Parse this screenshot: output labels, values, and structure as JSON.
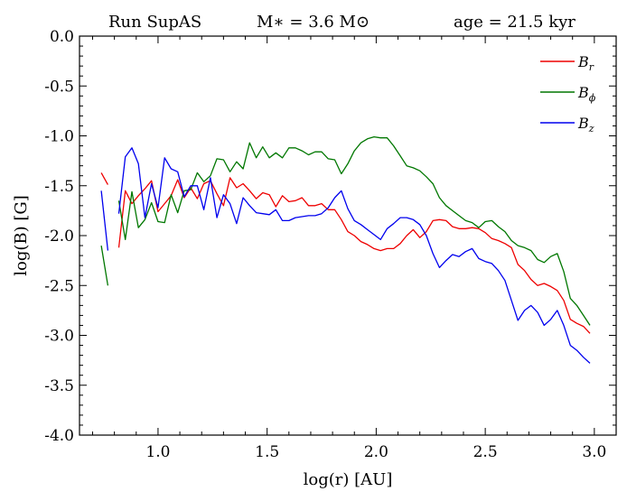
{
  "chart_data": {
    "type": "line",
    "header": {
      "run": "Run SupAS",
      "mass": "M∗ = 3.6 M⊙",
      "age": "age = 21.5 kyr"
    },
    "xlabel": "log(r) [AU]",
    "ylabel": "log(B) [G]",
    "xlim": [
      0.64,
      3.1
    ],
    "ylim": [
      -4.0,
      0.0
    ],
    "xticks": [
      1.0,
      1.5,
      2.0,
      2.5,
      3.0
    ],
    "xtick_labels": [
      "1.0",
      "1.5",
      "2.0",
      "2.5",
      "3.0"
    ],
    "yticks": [
      0.0,
      -0.5,
      -1.0,
      -1.5,
      -2.0,
      -2.5,
      -3.0,
      -3.5,
      -4.0
    ],
    "ytick_labels": [
      "0.0",
      "-0.5",
      "-1.0",
      "-1.5",
      "-2.0",
      "-2.5",
      "-3.0",
      "-3.5",
      "-4.0"
    ],
    "grid": false,
    "legend_position": "top-right",
    "series": [
      {
        "name": "B_r",
        "label_main": "B",
        "label_sub": "r",
        "color": "#ee0000",
        "segments": [
          [
            [
              0.74,
              -1.37
            ],
            [
              0.77,
              -1.49
            ]
          ],
          [
            [
              0.82,
              -2.12
            ],
            [
              0.85,
              -1.55
            ],
            [
              0.88,
              -1.68
            ],
            [
              0.91,
              -1.6
            ],
            [
              0.94,
              -1.53
            ],
            [
              0.97,
              -1.45
            ],
            [
              1.0,
              -1.76
            ],
            [
              1.03,
              -1.68
            ],
            [
              1.06,
              -1.6
            ],
            [
              1.09,
              -1.44
            ],
            [
              1.12,
              -1.62
            ],
            [
              1.15,
              -1.52
            ],
            [
              1.18,
              -1.63
            ],
            [
              1.21,
              -1.48
            ],
            [
              1.24,
              -1.45
            ],
            [
              1.27,
              -1.58
            ],
            [
              1.3,
              -1.7
            ],
            [
              1.33,
              -1.42
            ],
            [
              1.36,
              -1.52
            ],
            [
              1.39,
              -1.48
            ],
            [
              1.42,
              -1.55
            ],
            [
              1.45,
              -1.63
            ],
            [
              1.48,
              -1.57
            ],
            [
              1.51,
              -1.59
            ],
            [
              1.54,
              -1.71
            ],
            [
              1.57,
              -1.6
            ],
            [
              1.6,
              -1.66
            ],
            [
              1.63,
              -1.65
            ],
            [
              1.66,
              -1.62
            ],
            [
              1.69,
              -1.7
            ],
            [
              1.72,
              -1.7
            ],
            [
              1.75,
              -1.68
            ],
            [
              1.78,
              -1.74
            ],
            [
              1.81,
              -1.74
            ],
            [
              1.84,
              -1.84
            ],
            [
              1.87,
              -1.96
            ],
            [
              1.9,
              -2.0
            ],
            [
              1.93,
              -2.06
            ],
            [
              1.96,
              -2.09
            ],
            [
              1.99,
              -2.13
            ],
            [
              2.02,
              -2.15
            ],
            [
              2.05,
              -2.13
            ],
            [
              2.08,
              -2.13
            ],
            [
              2.11,
              -2.08
            ],
            [
              2.14,
              -2.0
            ],
            [
              2.17,
              -1.94
            ],
            [
              2.2,
              -2.02
            ],
            [
              2.23,
              -1.96
            ],
            [
              2.26,
              -1.85
            ],
            [
              2.29,
              -1.84
            ],
            [
              2.32,
              -1.85
            ],
            [
              2.35,
              -1.91
            ],
            [
              2.38,
              -1.93
            ],
            [
              2.41,
              -1.93
            ],
            [
              2.44,
              -1.92
            ],
            [
              2.47,
              -1.93
            ],
            [
              2.5,
              -1.97
            ],
            [
              2.53,
              -2.03
            ],
            [
              2.56,
              -2.05
            ],
            [
              2.59,
              -2.08
            ],
            [
              2.62,
              -2.12
            ],
            [
              2.65,
              -2.29
            ],
            [
              2.68,
              -2.35
            ],
            [
              2.71,
              -2.44
            ],
            [
              2.74,
              -2.5
            ],
            [
              2.77,
              -2.48
            ],
            [
              2.8,
              -2.51
            ],
            [
              2.83,
              -2.55
            ],
            [
              2.86,
              -2.65
            ],
            [
              2.89,
              -2.84
            ],
            [
              2.92,
              -2.88
            ],
            [
              2.95,
              -2.91
            ],
            [
              2.98,
              -2.98
            ]
          ]
        ]
      },
      {
        "name": "B_phi",
        "label_main": "B",
        "label_sub": "ϕ",
        "color": "#007700",
        "segments": [
          [
            [
              0.74,
              -2.1
            ],
            [
              0.77,
              -2.5
            ]
          ],
          [
            [
              0.82,
              -1.65
            ],
            [
              0.85,
              -2.04
            ],
            [
              0.88,
              -1.56
            ],
            [
              0.91,
              -1.92
            ],
            [
              0.94,
              -1.84
            ],
            [
              0.97,
              -1.67
            ],
            [
              1.0,
              -1.86
            ],
            [
              1.03,
              -1.87
            ],
            [
              1.06,
              -1.59
            ],
            [
              1.09,
              -1.77
            ],
            [
              1.12,
              -1.55
            ],
            [
              1.15,
              -1.54
            ],
            [
              1.18,
              -1.37
            ],
            [
              1.21,
              -1.46
            ],
            [
              1.24,
              -1.4
            ],
            [
              1.27,
              -1.23
            ],
            [
              1.3,
              -1.24
            ],
            [
              1.33,
              -1.36
            ],
            [
              1.36,
              -1.26
            ],
            [
              1.39,
              -1.33
            ],
            [
              1.42,
              -1.07
            ],
            [
              1.45,
              -1.22
            ],
            [
              1.48,
              -1.11
            ],
            [
              1.51,
              -1.22
            ],
            [
              1.54,
              -1.17
            ],
            [
              1.57,
              -1.22
            ],
            [
              1.6,
              -1.12
            ],
            [
              1.63,
              -1.12
            ],
            [
              1.66,
              -1.15
            ],
            [
              1.69,
              -1.19
            ],
            [
              1.72,
              -1.16
            ],
            [
              1.75,
              -1.16
            ],
            [
              1.78,
              -1.23
            ],
            [
              1.81,
              -1.24
            ],
            [
              1.84,
              -1.38
            ],
            [
              1.87,
              -1.28
            ],
            [
              1.9,
              -1.15
            ],
            [
              1.93,
              -1.07
            ],
            [
              1.96,
              -1.03
            ],
            [
              1.99,
              -1.01
            ],
            [
              2.02,
              -1.02
            ],
            [
              2.05,
              -1.02
            ],
            [
              2.08,
              -1.1
            ],
            [
              2.11,
              -1.2
            ],
            [
              2.14,
              -1.3
            ],
            [
              2.17,
              -1.32
            ],
            [
              2.2,
              -1.35
            ],
            [
              2.23,
              -1.41
            ],
            [
              2.26,
              -1.48
            ],
            [
              2.29,
              -1.62
            ],
            [
              2.32,
              -1.7
            ],
            [
              2.35,
              -1.75
            ],
            [
              2.38,
              -1.8
            ],
            [
              2.41,
              -1.85
            ],
            [
              2.44,
              -1.87
            ],
            [
              2.47,
              -1.92
            ],
            [
              2.5,
              -1.86
            ],
            [
              2.53,
              -1.85
            ],
            [
              2.56,
              -1.91
            ],
            [
              2.59,
              -1.96
            ],
            [
              2.62,
              -2.05
            ],
            [
              2.65,
              -2.1
            ],
            [
              2.68,
              -2.12
            ],
            [
              2.71,
              -2.15
            ],
            [
              2.74,
              -2.24
            ],
            [
              2.77,
              -2.27
            ],
            [
              2.8,
              -2.21
            ],
            [
              2.83,
              -2.18
            ],
            [
              2.86,
              -2.36
            ],
            [
              2.89,
              -2.63
            ],
            [
              2.92,
              -2.7
            ],
            [
              2.95,
              -2.8
            ],
            [
              2.98,
              -2.9
            ]
          ]
        ]
      },
      {
        "name": "B_z",
        "label_main": "B",
        "label_sub": "z",
        "color": "#0000ee",
        "segments": [
          [
            [
              0.74,
              -1.55
            ],
            [
              0.77,
              -2.15
            ]
          ],
          [
            [
              0.82,
              -1.78
            ],
            [
              0.85,
              -1.21
            ],
            [
              0.88,
              -1.12
            ],
            [
              0.91,
              -1.28
            ],
            [
              0.94,
              -1.82
            ],
            [
              0.97,
              -1.48
            ],
            [
              1.0,
              -1.72
            ],
            [
              1.03,
              -1.22
            ],
            [
              1.06,
              -1.33
            ],
            [
              1.09,
              -1.36
            ],
            [
              1.12,
              -1.61
            ],
            [
              1.15,
              -1.5
            ],
            [
              1.18,
              -1.5
            ],
            [
              1.21,
              -1.74
            ],
            [
              1.24,
              -1.42
            ],
            [
              1.27,
              -1.82
            ],
            [
              1.3,
              -1.59
            ],
            [
              1.33,
              -1.68
            ],
            [
              1.36,
              -1.88
            ],
            [
              1.39,
              -1.62
            ],
            [
              1.42,
              -1.7
            ],
            [
              1.45,
              -1.77
            ],
            [
              1.48,
              -1.78
            ],
            [
              1.51,
              -1.79
            ],
            [
              1.54,
              -1.74
            ],
            [
              1.57,
              -1.85
            ],
            [
              1.6,
              -1.85
            ],
            [
              1.63,
              -1.82
            ],
            [
              1.66,
              -1.81
            ],
            [
              1.69,
              -1.8
            ],
            [
              1.72,
              -1.8
            ],
            [
              1.75,
              -1.78
            ],
            [
              1.78,
              -1.72
            ],
            [
              1.81,
              -1.62
            ],
            [
              1.84,
              -1.55
            ],
            [
              1.87,
              -1.73
            ],
            [
              1.9,
              -1.85
            ],
            [
              1.93,
              -1.89
            ],
            [
              1.96,
              -1.94
            ],
            [
              1.99,
              -1.99
            ],
            [
              2.02,
              -2.04
            ],
            [
              2.05,
              -1.93
            ],
            [
              2.08,
              -1.88
            ],
            [
              2.11,
              -1.82
            ],
            [
              2.14,
              -1.82
            ],
            [
              2.17,
              -1.84
            ],
            [
              2.2,
              -1.89
            ],
            [
              2.23,
              -2.0
            ],
            [
              2.26,
              -2.18
            ],
            [
              2.29,
              -2.32
            ],
            [
              2.32,
              -2.25
            ],
            [
              2.35,
              -2.19
            ],
            [
              2.38,
              -2.21
            ],
            [
              2.41,
              -2.16
            ],
            [
              2.44,
              -2.13
            ],
            [
              2.47,
              -2.23
            ],
            [
              2.5,
              -2.26
            ],
            [
              2.53,
              -2.28
            ],
            [
              2.56,
              -2.35
            ],
            [
              2.59,
              -2.45
            ],
            [
              2.62,
              -2.65
            ],
            [
              2.65,
              -2.85
            ],
            [
              2.68,
              -2.75
            ],
            [
              2.71,
              -2.7
            ],
            [
              2.74,
              -2.77
            ],
            [
              2.77,
              -2.9
            ],
            [
              2.8,
              -2.84
            ],
            [
              2.83,
              -2.75
            ],
            [
              2.86,
              -2.9
            ],
            [
              2.89,
              -3.1
            ],
            [
              2.92,
              -3.15
            ],
            [
              2.95,
              -3.22
            ],
            [
              2.98,
              -3.28
            ]
          ]
        ]
      }
    ]
  }
}
